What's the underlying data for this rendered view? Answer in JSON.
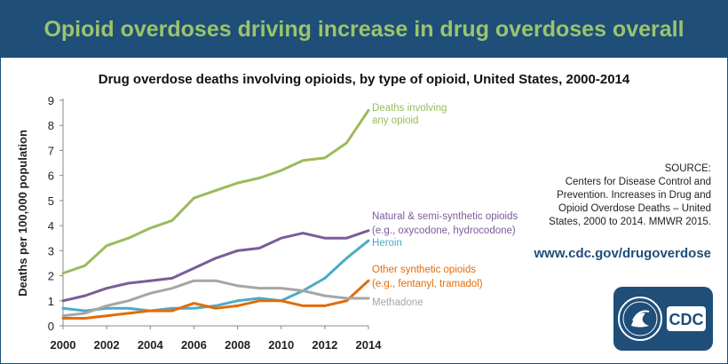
{
  "banner": {
    "title": "Opioid overdoses driving increase in drug overdoses overall"
  },
  "source": {
    "label": "SOURCE:",
    "text": "Centers for Disease Control and Prevention. Increases in Drug and Opioid Overdose Deaths – United States, 2000 to 2014. MMWR 2015.",
    "url": "www.cdc.gov/drugoverdose"
  },
  "logo": {
    "text": "CDC",
    "seal_icon": "hhs-seal-icon",
    "color": "#1f4e79"
  },
  "chart_data": {
    "type": "line",
    "title": "Drug overdose deaths involving opioids, by type of opioid, United States, 2000-2014",
    "xlabel": "",
    "ylabel": "Deaths per 100,000 population",
    "xlim": [
      2000,
      2014
    ],
    "ylim": [
      0,
      9
    ],
    "x_ticks": [
      2000,
      2002,
      2004,
      2006,
      2008,
      2010,
      2012,
      2014
    ],
    "y_ticks": [
      0,
      1,
      2,
      3,
      4,
      5,
      6,
      7,
      8,
      9
    ],
    "grid": false,
    "legend": "direct labels at line ends",
    "x": [
      2000,
      2001,
      2002,
      2003,
      2004,
      2005,
      2006,
      2007,
      2008,
      2009,
      2010,
      2011,
      2012,
      2013,
      2014
    ],
    "series": [
      {
        "name": "Deaths involving any opioid",
        "label_lines": [
          "Deaths involving",
          "any opioid"
        ],
        "color": "#9bbb59",
        "values": [
          2.1,
          2.4,
          3.2,
          3.5,
          3.9,
          4.2,
          5.1,
          5.4,
          5.7,
          5.9,
          6.2,
          6.6,
          6.7,
          7.3,
          8.6
        ]
      },
      {
        "name": "Natural & semi-synthetic opioids (e.g., oxycodone, hydrocodone)",
        "label_lines": [
          "Natural & semi-synthetic opioids",
          "(e.g., oxycodone, hydrocodone)"
        ],
        "color": "#7a5c9a",
        "values": [
          1.0,
          1.2,
          1.5,
          1.7,
          1.8,
          1.9,
          2.3,
          2.7,
          3.0,
          3.1,
          3.5,
          3.7,
          3.5,
          3.5,
          3.8
        ]
      },
      {
        "name": "Heroin",
        "label_lines": [
          "Heroin"
        ],
        "color": "#4bacc6",
        "values": [
          0.7,
          0.6,
          0.7,
          0.7,
          0.6,
          0.7,
          0.7,
          0.8,
          1.0,
          1.1,
          1.0,
          1.4,
          1.9,
          2.7,
          3.4
        ]
      },
      {
        "name": "Other synthetic opioids (e.g., fentanyl, tramadol)",
        "label_lines": [
          "Other synthetic opioids",
          "(e.g., fentanyl, tramadol)"
        ],
        "color": "#e36c09",
        "values": [
          0.3,
          0.3,
          0.4,
          0.5,
          0.6,
          0.6,
          0.9,
          0.7,
          0.8,
          1.0,
          1.0,
          0.8,
          0.8,
          1.0,
          1.8
        ]
      },
      {
        "name": "Methadone",
        "label_lines": [
          "Methadone"
        ],
        "color": "#a6a6a6",
        "values": [
          0.4,
          0.5,
          0.8,
          1.0,
          1.3,
          1.5,
          1.8,
          1.8,
          1.6,
          1.5,
          1.5,
          1.4,
          1.2,
          1.1,
          1.1
        ]
      }
    ]
  }
}
